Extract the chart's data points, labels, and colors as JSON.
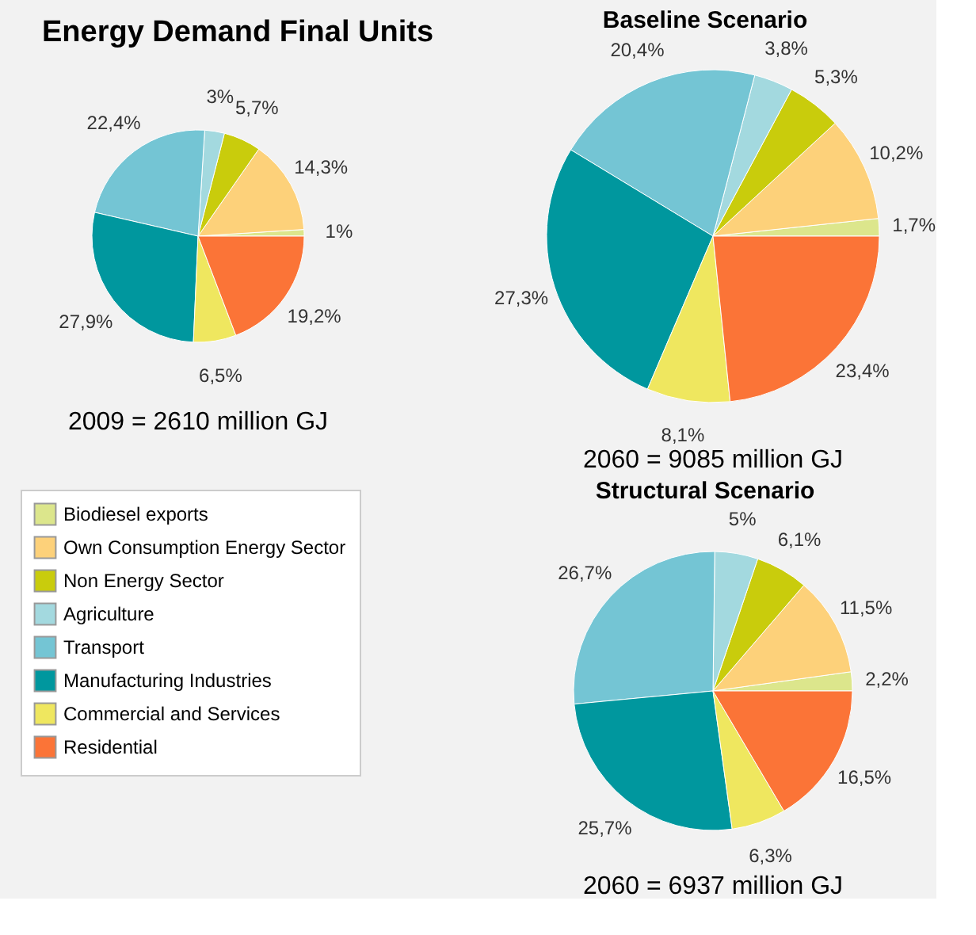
{
  "chart_data": [
    {
      "type": "pie",
      "title": "Energy Demand Final Units",
      "categories": [
        "Biodiesel exports",
        "Own Consumption Energy Sector",
        "Non Energy Sector",
        "Agriculture",
        "Transport",
        "Manufacturing Industries",
        "Commercial and Services",
        "Residential"
      ],
      "values": [
        1,
        14.3,
        5.7,
        3,
        22.4,
        27.9,
        6.5,
        19.2
      ],
      "value_labels": [
        "1%",
        "14,3%",
        "5,7%",
        "3%",
        "22,4%",
        "27,9%",
        "6,5%",
        "19,2%"
      ],
      "colors": [
        "#dce68c",
        "#fdd17a",
        "#c9cc0c",
        "#a3d9df",
        "#74c5d4",
        "#00979e",
        "#efe75f",
        "#fb7437"
      ],
      "annotations": [
        "2009 = 2610 million GJ"
      ],
      "legend": "bottom"
    },
    {
      "type": "pie",
      "title": "Baseline Scenario",
      "categories": [
        null,
        null,
        null,
        null,
        null,
        null,
        null,
        null
      ],
      "values": [
        1.7,
        10.2,
        5.3,
        3.8,
        20.4,
        27.3,
        8.1,
        23.4
      ],
      "value_labels": [
        "1,7%",
        "10,2%",
        "5,3%",
        "3,8%",
        "20,4%",
        "27,3%",
        "8,1%",
        "23,4%"
      ],
      "colors": [
        "#dce68c",
        "#fdd17a",
        "#c9cc0c",
        "#a3d9df",
        "#74c5d4",
        "#00979e",
        "#efe75f",
        "#fb7437"
      ],
      "annotations": [
        "2060 = 9085 million GJ"
      ]
    },
    {
      "type": "pie",
      "title": "Structural Scenario",
      "categories": [
        null,
        null,
        null,
        null,
        null,
        null,
        null,
        null
      ],
      "values": [
        2.2,
        11.5,
        6.1,
        5,
        26.7,
        25.7,
        6.3,
        16.5
      ],
      "value_labels": [
        "2,2%",
        "11,5%",
        "6,1%",
        "5%",
        "26,7%",
        "25,7%",
        "6,3%",
        "16,5%"
      ],
      "colors": [
        "#dce68c",
        "#fdd17a",
        "#c9cc0c",
        "#a3d9df",
        "#74c5d4",
        "#00979e",
        "#efe75f",
        "#fb7437"
      ],
      "annotations": [
        "2060 = 6937 million GJ"
      ]
    }
  ]
}
